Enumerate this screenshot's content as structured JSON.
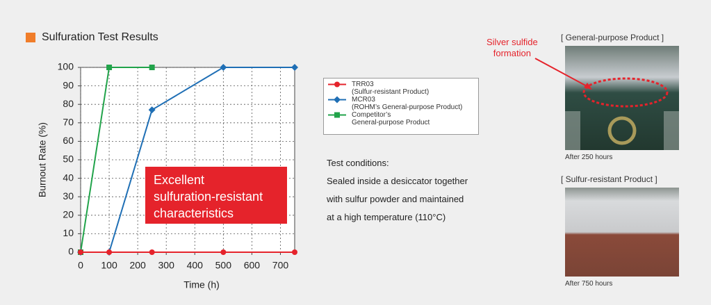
{
  "header": {
    "title": "Sulfuration Test Results"
  },
  "chart_data": {
    "type": "line",
    "x_label": "Time (h)",
    "y_label": "Burnout Rate (%)",
    "xlim": [
      0,
      750
    ],
    "xticks": [
      0,
      100,
      200,
      300,
      400,
      500,
      600,
      700
    ],
    "ylim": [
      0,
      100
    ],
    "yticks": [
      0,
      10,
      20,
      30,
      40,
      50,
      60,
      70,
      80,
      90,
      100
    ],
    "grid": true,
    "series": [
      {
        "name": "TRR03\n(Sulfur-resistant Product)",
        "color": "#e5232b",
        "marker": "circle",
        "x": [
          0,
          100,
          250,
          500,
          750
        ],
        "values": [
          0,
          0,
          0,
          0,
          0
        ]
      },
      {
        "name": "MCR03\n(ROHM’s General-purpose Product)",
        "color": "#1f6fb5",
        "marker": "diamond",
        "x": [
          0,
          100,
          250,
          500,
          750
        ],
        "values": [
          0,
          0,
          77,
          100,
          100
        ]
      },
      {
        "name": "Competitor’s\nGeneral-purpose Product",
        "color": "#21a34a",
        "marker": "square",
        "x": [
          0,
          100,
          250
        ],
        "values": [
          0,
          100,
          100
        ]
      }
    ],
    "annotation": "Excellent\nsulfuration-resistant\ncharacteristics"
  },
  "test_conditions": {
    "title": "Test conditions:",
    "lines": [
      "Sealed inside a desiccator together",
      "with sulfur powder and maintained",
      "at a high temperature (110°C)"
    ]
  },
  "photos": {
    "callout": "Silver sulfide\nformation",
    "general": {
      "title": "[ General-purpose Product ]",
      "caption": "After 250 hours"
    },
    "resistant": {
      "title": "[ Sulfur-resistant Product ]",
      "caption": "After 750 hours"
    }
  }
}
